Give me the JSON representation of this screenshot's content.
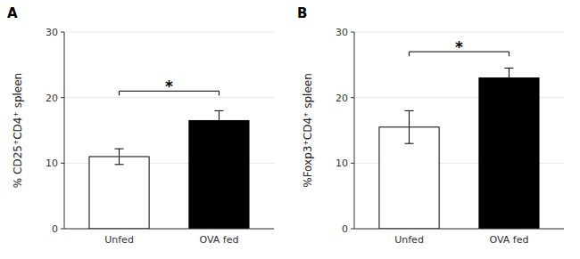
{
  "chart_data": [
    {
      "type": "bar",
      "title": "A",
      "categories": [
        "Unfed",
        "OVA fed"
      ],
      "values": [
        11.0,
        16.5
      ],
      "errors": [
        1.2,
        1.5
      ],
      "colors": [
        "white",
        "black"
      ],
      "y_label": "% CD25⁺CD4⁺ spleen",
      "ylim": [
        0,
        30
      ],
      "yticks": [
        0,
        10,
        20,
        30
      ],
      "annotations": [
        {
          "text": "*",
          "y": 21.0
        }
      ]
    },
    {
      "type": "bar",
      "title": "B",
      "categories": [
        "Unfed",
        "OVA fed"
      ],
      "values": [
        15.5,
        23.0
      ],
      "errors": [
        2.5,
        1.5
      ],
      "colors": [
        "white",
        "black"
      ],
      "y_label": "%Foxp3⁺CD4⁺ spleen",
      "ylim": [
        0,
        30
      ],
      "yticks": [
        0,
        10,
        20,
        30
      ],
      "annotations": [
        {
          "text": "*",
          "y": 27.0
        }
      ]
    }
  ]
}
